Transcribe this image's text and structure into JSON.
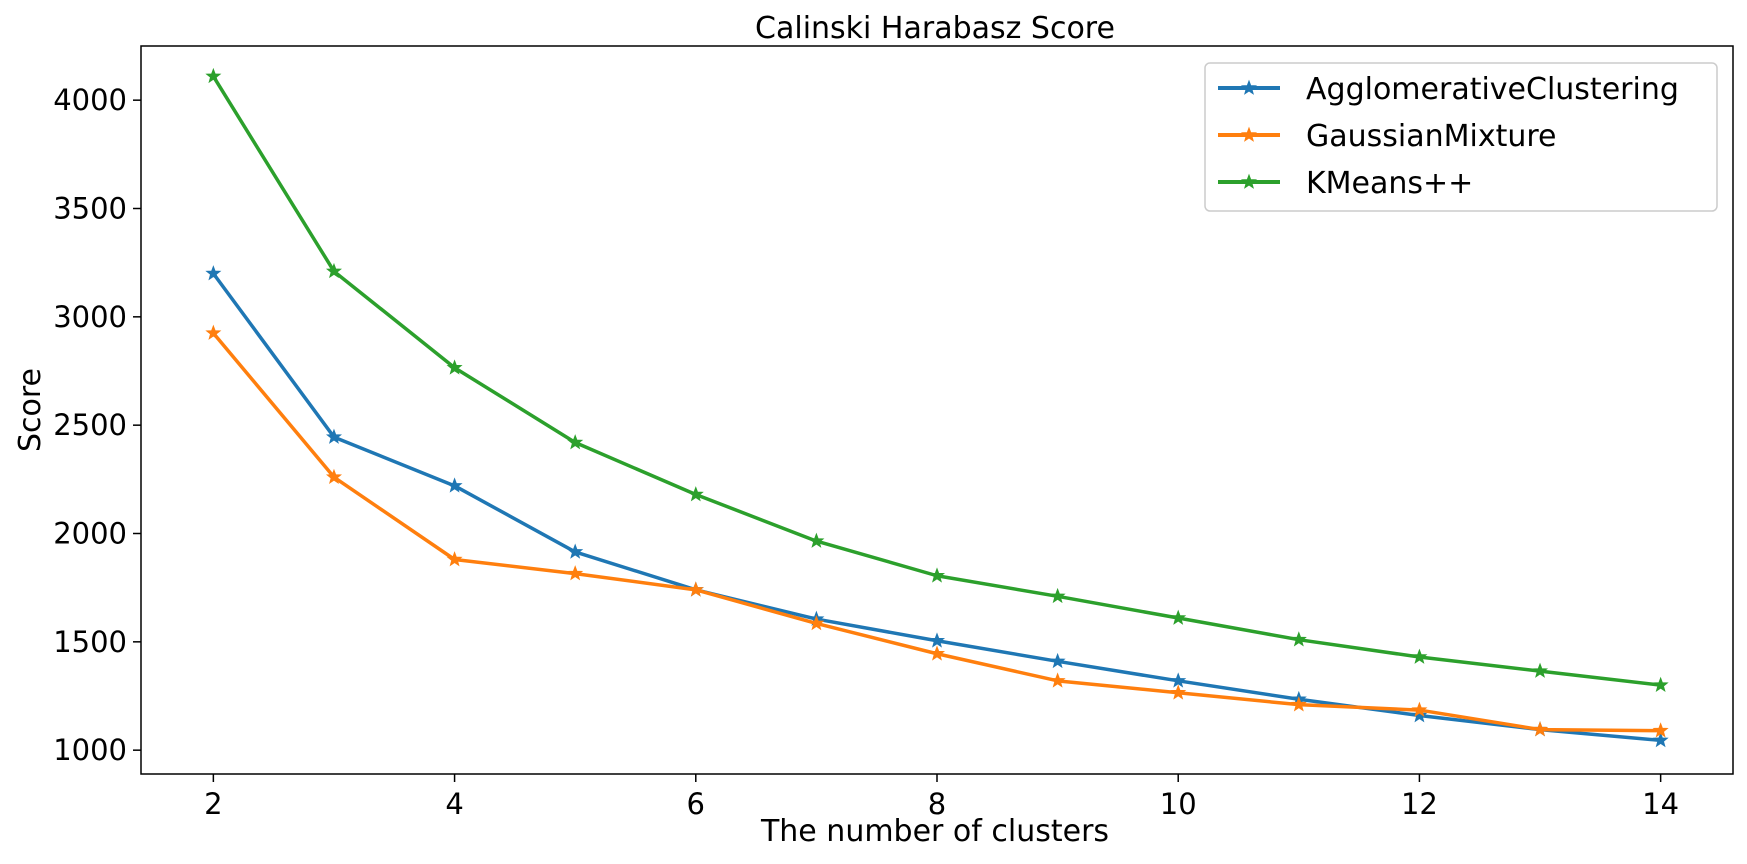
{
  "chart_data": {
    "type": "line",
    "title": "Calinski Harabasz Score",
    "xlabel": "The number of clusters",
    "ylabel": "Score",
    "x": [
      2,
      3,
      4,
      5,
      6,
      7,
      8,
      9,
      10,
      11,
      12,
      13,
      14
    ],
    "xlim": [
      1.4,
      14.6
    ],
    "ylim": [
      890,
      4250
    ],
    "xticks": [
      2,
      4,
      6,
      8,
      10,
      12,
      14
    ],
    "yticks": [
      1000,
      1500,
      2000,
      2500,
      3000,
      3500,
      4000
    ],
    "marker": "star",
    "grid": false,
    "legend_position": "top-right",
    "series": [
      {
        "name": "AgglomerativeClustering",
        "color": "#1f77b4",
        "values": [
          3200,
          2445,
          2220,
          1915,
          1740,
          1605,
          1505,
          1410,
          1320,
          1235,
          1160,
          1095,
          1045
        ]
      },
      {
        "name": "GaussianMixture",
        "color": "#ff7f0e",
        "values": [
          2925,
          2260,
          1880,
          1815,
          1740,
          1585,
          1445,
          1320,
          1265,
          1210,
          1185,
          1095,
          1090
        ]
      },
      {
        "name": "KMeans++",
        "color": "#2ca02c",
        "values": [
          4110,
          3210,
          2765,
          2420,
          2180,
          1965,
          1805,
          1710,
          1610,
          1510,
          1430,
          1365,
          1300
        ]
      }
    ]
  }
}
